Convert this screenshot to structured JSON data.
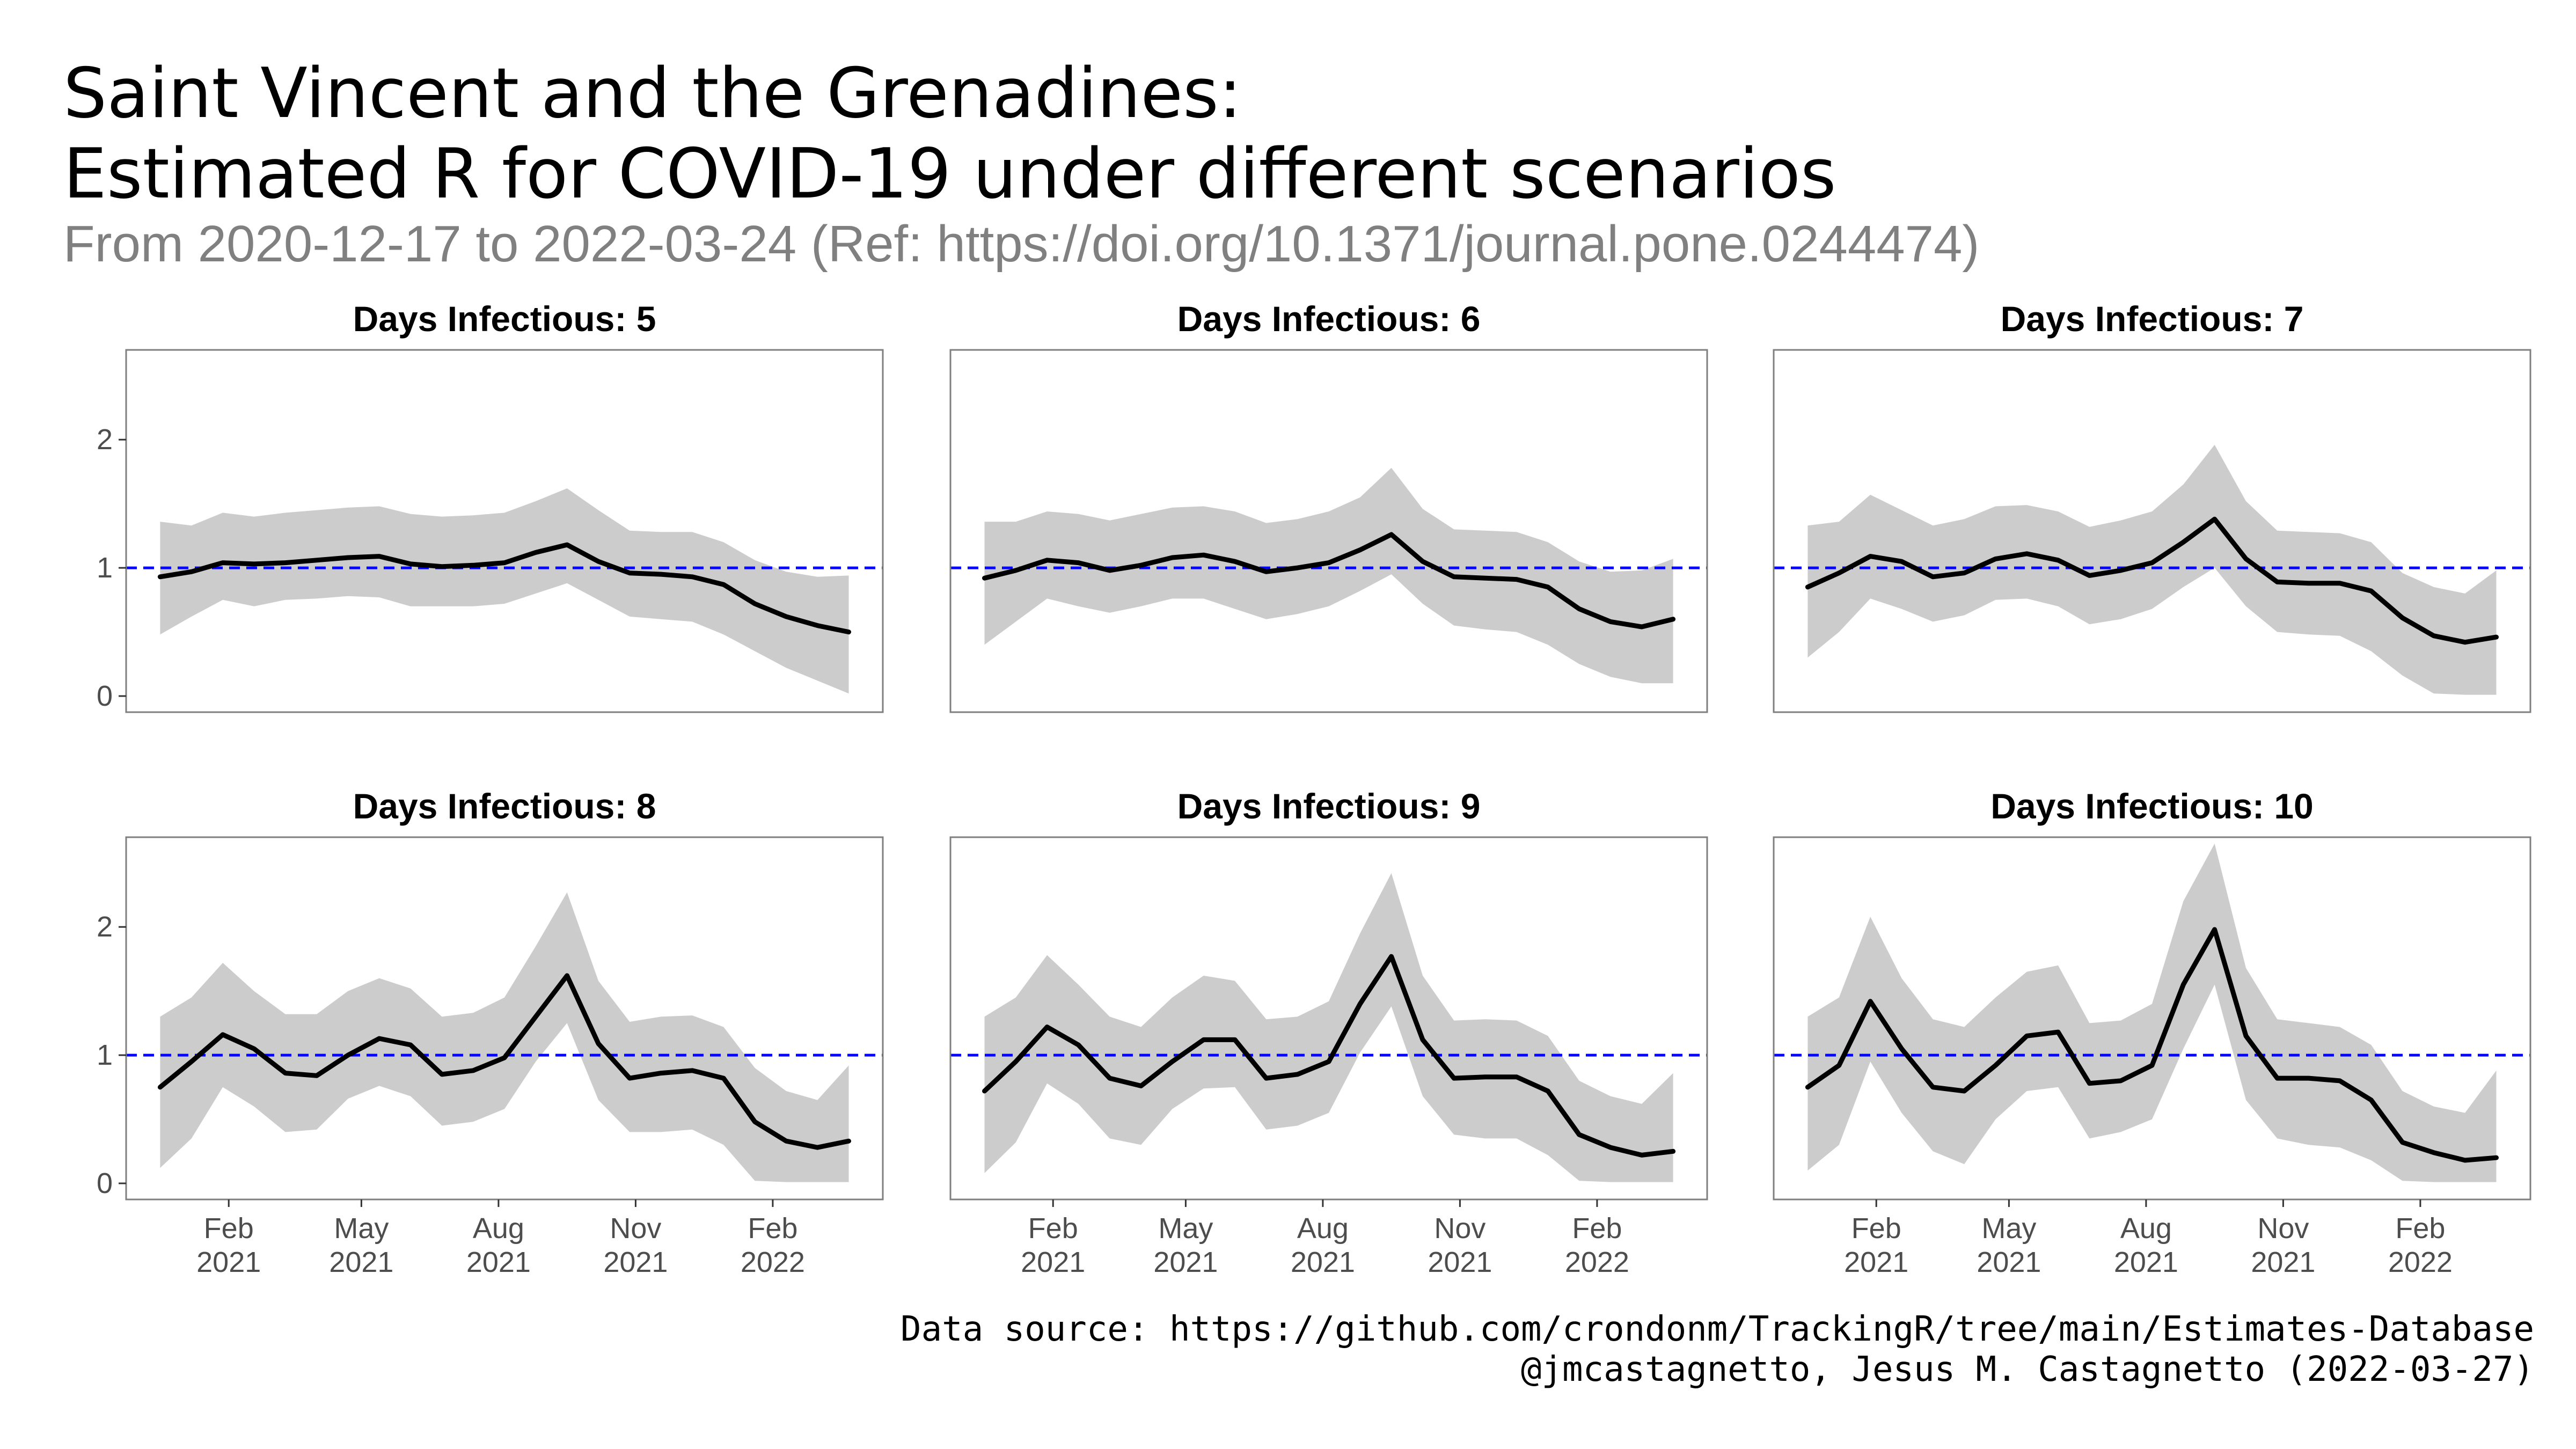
{
  "title_line1": "Saint Vincent and the Grenadines:",
  "title_line2": "Estimated R for COVID-19 under different scenarios",
  "subtitle": "From 2020-12-17 to 2022-03-24 (Ref: https://doi.org/10.1371/journal.pone.0244474)",
  "caption_line1": "Data source: https://github.com/crondonm/TrackingR/tree/main/Estimates-Database",
  "caption_line2": "@jmcastagnetto, Jesus M. Castagnetto (2022-03-27)",
  "colors": {
    "line": "#000000",
    "band": "#cccccc",
    "reference": "#0000ff",
    "panel_border": "#7f7f7f",
    "axis_text": "#4d4d4d"
  },
  "chart_data": {
    "type": "line",
    "layout": "facet 2x3",
    "x_range": [
      "2020-12-17",
      "2022-03-24"
    ],
    "ylim": [
      0,
      2.7
    ],
    "y_ticks": [
      0,
      1,
      2
    ],
    "x_ticks": [
      {
        "date": "2021-02-01",
        "label_month": "Feb",
        "label_year": "2021"
      },
      {
        "date": "2021-05-01",
        "label_month": "May",
        "label_year": "2021"
      },
      {
        "date": "2021-08-01",
        "label_month": "Aug",
        "label_year": "2021"
      },
      {
        "date": "2021-11-01",
        "label_month": "Nov",
        "label_year": "2021"
      },
      {
        "date": "2022-02-01",
        "label_month": "Feb",
        "label_year": "2022"
      }
    ],
    "reference_line": 1,
    "grid": false,
    "facets": [
      {
        "title": "Days Infectious: 5",
        "dates": [
          "2020-12-17",
          "2021-01-07",
          "2021-01-28",
          "2021-02-18",
          "2021-03-11",
          "2021-04-01",
          "2021-04-22",
          "2021-05-13",
          "2021-06-03",
          "2021-06-24",
          "2021-07-15",
          "2021-08-05",
          "2021-08-26",
          "2021-09-16",
          "2021-10-07",
          "2021-10-28",
          "2021-11-18",
          "2021-12-09",
          "2021-12-30",
          "2022-01-20",
          "2022-02-10",
          "2022-03-03",
          "2022-03-24"
        ],
        "r": [
          0.93,
          0.97,
          1.04,
          1.03,
          1.04,
          1.06,
          1.08,
          1.09,
          1.03,
          1.01,
          1.02,
          1.04,
          1.12,
          1.18,
          1.05,
          0.96,
          0.95,
          0.93,
          0.87,
          0.72,
          0.62,
          0.55,
          0.5
        ],
        "lower": [
          0.48,
          0.62,
          0.75,
          0.7,
          0.75,
          0.76,
          0.78,
          0.77,
          0.7,
          0.7,
          0.7,
          0.72,
          0.8,
          0.88,
          0.75,
          0.62,
          0.6,
          0.58,
          0.48,
          0.35,
          0.22,
          0.12,
          0.02
        ],
        "upper": [
          1.36,
          1.33,
          1.43,
          1.4,
          1.43,
          1.45,
          1.47,
          1.48,
          1.42,
          1.4,
          1.41,
          1.43,
          1.52,
          1.62,
          1.45,
          1.29,
          1.28,
          1.28,
          1.2,
          1.06,
          0.97,
          0.93,
          0.94
        ]
      },
      {
        "title": "Days Infectious: 6",
        "dates": [
          "2020-12-17",
          "2021-01-07",
          "2021-01-28",
          "2021-02-18",
          "2021-03-11",
          "2021-04-01",
          "2021-04-22",
          "2021-05-13",
          "2021-06-03",
          "2021-06-24",
          "2021-07-15",
          "2021-08-05",
          "2021-08-26",
          "2021-09-16",
          "2021-10-07",
          "2021-10-28",
          "2021-11-18",
          "2021-12-09",
          "2021-12-30",
          "2022-01-20",
          "2022-02-10",
          "2022-03-03",
          "2022-03-24"
        ],
        "r": [
          0.92,
          0.98,
          1.06,
          1.04,
          0.98,
          1.02,
          1.08,
          1.1,
          1.05,
          0.97,
          1.0,
          1.04,
          1.14,
          1.26,
          1.05,
          0.93,
          0.92,
          0.91,
          0.85,
          0.68,
          0.58,
          0.54,
          0.6
        ],
        "lower": [
          0.4,
          0.58,
          0.76,
          0.7,
          0.65,
          0.7,
          0.76,
          0.76,
          0.68,
          0.6,
          0.64,
          0.7,
          0.82,
          0.95,
          0.72,
          0.55,
          0.52,
          0.5,
          0.4,
          0.25,
          0.15,
          0.1,
          0.1
        ],
        "upper": [
          1.36,
          1.36,
          1.44,
          1.42,
          1.37,
          1.42,
          1.47,
          1.48,
          1.44,
          1.35,
          1.38,
          1.44,
          1.55,
          1.78,
          1.46,
          1.3,
          1.29,
          1.28,
          1.2,
          1.05,
          0.97,
          0.98,
          1.07
        ]
      },
      {
        "title": "Days Infectious: 7",
        "dates": [
          "2020-12-17",
          "2021-01-07",
          "2021-01-28",
          "2021-02-18",
          "2021-03-11",
          "2021-04-01",
          "2021-04-22",
          "2021-05-13",
          "2021-06-03",
          "2021-06-24",
          "2021-07-15",
          "2021-08-05",
          "2021-08-26",
          "2021-09-16",
          "2021-10-07",
          "2021-10-28",
          "2021-11-18",
          "2021-12-09",
          "2021-12-30",
          "2022-01-20",
          "2022-02-10",
          "2022-03-03",
          "2022-03-24"
        ],
        "r": [
          0.85,
          0.96,
          1.09,
          1.05,
          0.93,
          0.96,
          1.07,
          1.11,
          1.06,
          0.94,
          0.98,
          1.04,
          1.2,
          1.38,
          1.07,
          0.89,
          0.88,
          0.88,
          0.82,
          0.61,
          0.47,
          0.42,
          0.46
        ],
        "lower": [
          0.3,
          0.5,
          0.76,
          0.68,
          0.58,
          0.63,
          0.75,
          0.76,
          0.7,
          0.56,
          0.6,
          0.68,
          0.85,
          1.0,
          0.7,
          0.5,
          0.48,
          0.47,
          0.35,
          0.16,
          0.02,
          0.01,
          0.01
        ],
        "upper": [
          1.33,
          1.36,
          1.57,
          1.45,
          1.33,
          1.38,
          1.48,
          1.49,
          1.44,
          1.32,
          1.37,
          1.44,
          1.65,
          1.96,
          1.52,
          1.29,
          1.28,
          1.27,
          1.2,
          0.96,
          0.85,
          0.8,
          0.98
        ]
      },
      {
        "title": "Days Infectious: 8",
        "dates": [
          "2020-12-17",
          "2021-01-07",
          "2021-01-28",
          "2021-02-18",
          "2021-03-11",
          "2021-04-01",
          "2021-04-22",
          "2021-05-13",
          "2021-06-03",
          "2021-06-24",
          "2021-07-15",
          "2021-08-05",
          "2021-08-26",
          "2021-09-16",
          "2021-10-07",
          "2021-10-28",
          "2021-11-18",
          "2021-12-09",
          "2021-12-30",
          "2022-01-20",
          "2022-02-10",
          "2022-03-03",
          "2022-03-24"
        ],
        "r": [
          0.75,
          0.95,
          1.16,
          1.05,
          0.86,
          0.84,
          1.0,
          1.13,
          1.08,
          0.85,
          0.88,
          0.98,
          1.3,
          1.62,
          1.09,
          0.82,
          0.86,
          0.88,
          0.82,
          0.48,
          0.33,
          0.28,
          0.33
        ],
        "lower": [
          0.12,
          0.35,
          0.75,
          0.6,
          0.4,
          0.42,
          0.66,
          0.76,
          0.68,
          0.45,
          0.48,
          0.58,
          0.95,
          1.25,
          0.65,
          0.4,
          0.4,
          0.42,
          0.3,
          0.02,
          0.01,
          0.01,
          0.01
        ],
        "upper": [
          1.3,
          1.45,
          1.72,
          1.5,
          1.32,
          1.32,
          1.5,
          1.6,
          1.52,
          1.3,
          1.33,
          1.45,
          1.85,
          2.27,
          1.58,
          1.26,
          1.3,
          1.31,
          1.22,
          0.9,
          0.72,
          0.65,
          0.92
        ]
      },
      {
        "title": "Days Infectious: 9",
        "dates": [
          "2020-12-17",
          "2021-01-07",
          "2021-01-28",
          "2021-02-18",
          "2021-03-11",
          "2021-04-01",
          "2021-04-22",
          "2021-05-13",
          "2021-06-03",
          "2021-06-24",
          "2021-07-15",
          "2021-08-05",
          "2021-08-26",
          "2021-09-16",
          "2021-10-07",
          "2021-10-28",
          "2021-11-18",
          "2021-12-09",
          "2021-12-30",
          "2022-01-20",
          "2022-02-10",
          "2022-03-03",
          "2022-03-24"
        ],
        "r": [
          0.72,
          0.95,
          1.22,
          1.08,
          0.82,
          0.76,
          0.95,
          1.12,
          1.12,
          0.82,
          0.85,
          0.95,
          1.4,
          1.77,
          1.12,
          0.82,
          0.83,
          0.83,
          0.72,
          0.38,
          0.28,
          0.22,
          0.25
        ],
        "lower": [
          0.08,
          0.32,
          0.78,
          0.62,
          0.35,
          0.3,
          0.58,
          0.74,
          0.75,
          0.42,
          0.45,
          0.55,
          1.02,
          1.38,
          0.68,
          0.38,
          0.35,
          0.35,
          0.22,
          0.02,
          0.01,
          0.01,
          0.01
        ],
        "upper": [
          1.3,
          1.45,
          1.78,
          1.55,
          1.3,
          1.22,
          1.45,
          1.62,
          1.58,
          1.28,
          1.3,
          1.42,
          1.95,
          2.42,
          1.62,
          1.27,
          1.28,
          1.27,
          1.15,
          0.8,
          0.68,
          0.62,
          0.86
        ]
      },
      {
        "title": "Days Infectious: 10",
        "dates": [
          "2020-12-17",
          "2021-01-07",
          "2021-01-28",
          "2021-02-18",
          "2021-03-11",
          "2021-04-01",
          "2021-04-22",
          "2021-05-13",
          "2021-06-03",
          "2021-06-24",
          "2021-07-15",
          "2021-08-05",
          "2021-08-26",
          "2021-09-16",
          "2021-10-07",
          "2021-10-28",
          "2021-11-18",
          "2021-12-09",
          "2021-12-30",
          "2022-01-20",
          "2022-02-10",
          "2022-03-03",
          "2022-03-24"
        ],
        "r": [
          0.75,
          0.92,
          1.42,
          1.05,
          0.75,
          0.72,
          0.92,
          1.15,
          1.18,
          0.78,
          0.8,
          0.92,
          1.55,
          1.98,
          1.15,
          0.82,
          0.82,
          0.8,
          0.65,
          0.32,
          0.24,
          0.18,
          0.2
        ],
        "lower": [
          0.1,
          0.3,
          0.95,
          0.55,
          0.25,
          0.15,
          0.5,
          0.72,
          0.75,
          0.35,
          0.4,
          0.5,
          1.05,
          1.55,
          0.65,
          0.35,
          0.3,
          0.28,
          0.18,
          0.02,
          0.01,
          0.01,
          0.01
        ],
        "upper": [
          1.3,
          1.45,
          2.08,
          1.6,
          1.28,
          1.22,
          1.45,
          1.65,
          1.7,
          1.25,
          1.27,
          1.4,
          2.2,
          2.65,
          1.68,
          1.28,
          1.25,
          1.22,
          1.08,
          0.72,
          0.6,
          0.55,
          0.88
        ]
      }
    ]
  }
}
